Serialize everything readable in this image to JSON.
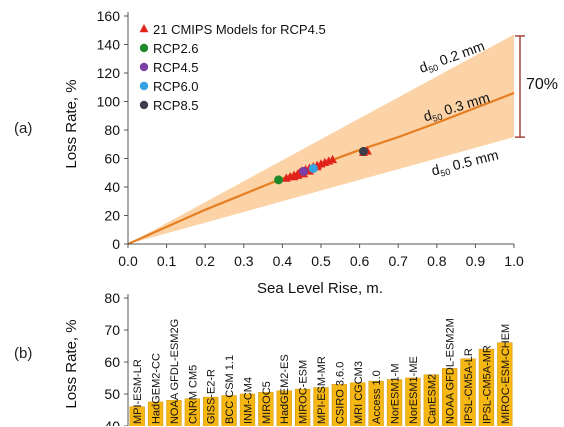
{
  "panel_a_label": "(a)",
  "panel_b_label": "(b)",
  "colors": {
    "band": "#fbd3a6",
    "curve": "#e67e22",
    "bracket": "#a33a30",
    "bar": "#f7b713",
    "bar_edge": "#d49a10"
  },
  "chart_data": [
    {
      "type": "scatter",
      "panel": "(a)",
      "xlabel": "Sea Level Rise, m.",
      "ylabel": "Loss Rate, %",
      "xlim": [
        0,
        1.0
      ],
      "ylim": [
        0,
        160
      ],
      "xticks": [
        "0.0",
        "0.1",
        "0.2",
        "0.3",
        "0.4",
        "0.5",
        "0.6",
        "0.7",
        "0.8",
        "0.9",
        "1.0"
      ],
      "yticks": [
        "0",
        "20",
        "40",
        "60",
        "80",
        "100",
        "120",
        "140",
        "160"
      ],
      "grid": false,
      "legend_position": "top-left",
      "curves": [
        {
          "label_prefix": "d",
          "label_sub": "50",
          "label_suffix": " 0.2 mm",
          "x": [
            0,
            1.0
          ],
          "y": [
            0,
            147
          ]
        },
        {
          "label_prefix": "d",
          "label_sub": "50",
          "label_suffix": " 0.3 mm",
          "x": [
            0,
            0.2,
            0.4,
            0.6,
            0.7,
            0.8,
            1.0
          ],
          "y": [
            0,
            24,
            46,
            66,
            75,
            85,
            106
          ]
        },
        {
          "label_prefix": "d",
          "label_sub": "50",
          "label_suffix": " 0.5 mm",
          "x": [
            0,
            1.0
          ],
          "y": [
            0,
            75
          ]
        }
      ],
      "annotation": "70%",
      "bracket_range": [
        75,
        146
      ],
      "series": [
        {
          "name": "21 CMIPS Models for RCP4.5",
          "marker": "triangle",
          "color": "#e0241b",
          "x": [
            0.41,
            0.42,
            0.43,
            0.44,
            0.445,
            0.45,
            0.46,
            0.47,
            0.48,
            0.49,
            0.5,
            0.51,
            0.52,
            0.53,
            0.47,
            0.43,
            0.455,
            0.44,
            0.49,
            0.61,
            0.62
          ],
          "y": [
            46,
            47,
            48,
            49,
            50,
            51,
            52,
            53,
            54,
            55,
            56,
            57,
            58,
            59,
            51,
            47,
            49,
            48,
            54,
            64,
            65
          ]
        },
        {
          "name": "RCP2.6",
          "marker": "circle",
          "color": "#1f8a2c",
          "x": [
            0.39
          ],
          "y": [
            45
          ]
        },
        {
          "name": "RCP4.5",
          "marker": "circle",
          "color": "#7b3fa6",
          "x": [
            0.455
          ],
          "y": [
            51
          ]
        },
        {
          "name": "RCP6.0",
          "marker": "circle",
          "color": "#35a2e0",
          "x": [
            0.48
          ],
          "y": [
            53
          ]
        },
        {
          "name": "RCP8.5",
          "marker": "circle",
          "color": "#3b3f4a",
          "x": [
            0.61
          ],
          "y": [
            65
          ]
        }
      ]
    },
    {
      "type": "bar",
      "panel": "(b)",
      "ylabel": "Loss Rate, %",
      "ylim": [
        40,
        80
      ],
      "yticks": [
        "40",
        "50",
        "60",
        "70",
        "80"
      ],
      "grid": false,
      "categories": [
        "MPI-ESM-LR",
        "HadGEM2-CC",
        "NOAA GFDL-ESM2G",
        "CNRM CM5",
        "GISS-E2-R",
        "BCC CSM 1.1",
        "INM-CM4",
        "MIROC5",
        "HadGEM2-ES",
        "MIROC-ESM",
        "MPI-ESM-MR",
        "CSIRO 3.6.0",
        "MRI CGCM3",
        "Access 1.0",
        "NorESM1-M",
        "NorESM1-ME",
        "CanESM2",
        "NOAA GFDL-ESM2M",
        "IPSL-CM5A-LR",
        "IPSL-CM5A-MR",
        "MIROC-ESM-CHEM"
      ],
      "values": [
        46,
        47.5,
        48,
        48.5,
        49,
        49.5,
        50,
        50.5,
        51,
        51.5,
        52,
        53,
        53.5,
        54,
        54.5,
        55,
        56,
        58,
        61,
        64,
        66
      ]
    }
  ]
}
